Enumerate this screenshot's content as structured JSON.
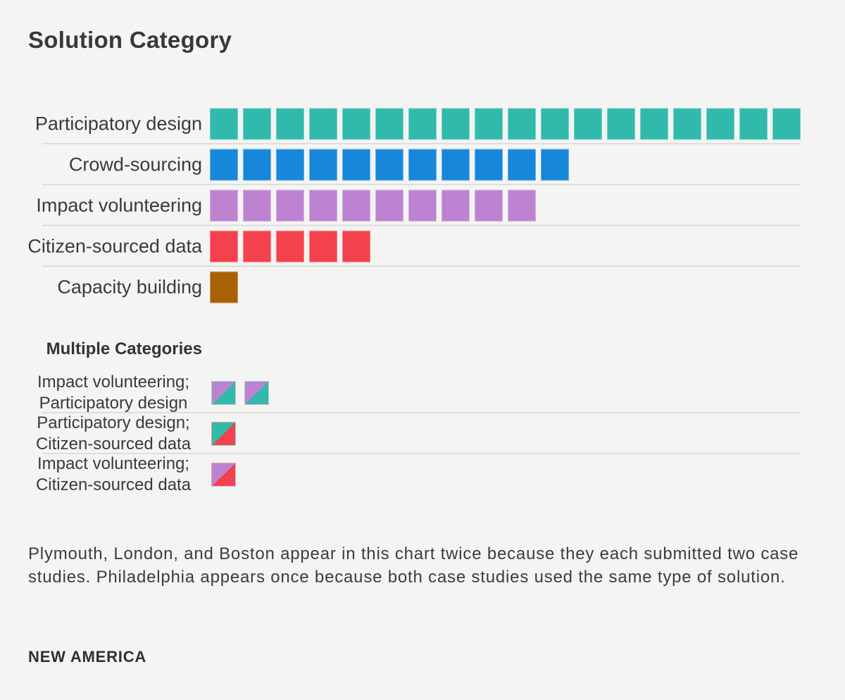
{
  "title": "Solution Category",
  "colors": {
    "teal": "#31b9ab",
    "blue": "#1787db",
    "purple": "#bd83d1",
    "red": "#f4414e",
    "brown": "#a96105",
    "background": "#f4f4f2",
    "separator": "#dedede",
    "text": "#3a3a3a"
  },
  "chart_data": {
    "type": "unit_bar",
    "title": "Solution Category",
    "legend_position": "none",
    "grid": "row-separators-only",
    "categories": [
      "Participatory design",
      "Crowd-sourcing",
      "Impact volunteering",
      "Citizen-sourced data",
      "Capacity building"
    ],
    "values": [
      18,
      11,
      10,
      5,
      1
    ],
    "single_categories": [
      {
        "label": "Participatory design",
        "count": 18,
        "color": "#31b9ab",
        "color_name": "teal"
      },
      {
        "label": "Crowd-sourcing",
        "count": 11,
        "color": "#1787db",
        "color_name": "blue"
      },
      {
        "label": "Impact volunteering",
        "count": 10,
        "color": "#bd83d1",
        "color_name": "purple"
      },
      {
        "label": "Citizen-sourced data",
        "count": 5,
        "color": "#f4414e",
        "color_name": "red"
      },
      {
        "label": "Capacity building",
        "count": 1,
        "color": "#a96105",
        "color_name": "brown"
      }
    ],
    "multiple_heading": "Multiple Categories",
    "multiple_categories": [
      {
        "label_lines": [
          "Impact volunteering;",
          "Participatory design"
        ],
        "count": 2,
        "colors": [
          "#bd83d1",
          "#31b9ab"
        ],
        "color_names": [
          "purple",
          "teal"
        ]
      },
      {
        "label_lines": [
          "Participatory design;",
          "Citizen-sourced data"
        ],
        "count": 1,
        "colors": [
          "#31b9ab",
          "#f4414e"
        ],
        "color_names": [
          "teal",
          "red"
        ]
      },
      {
        "label_lines": [
          "Impact volunteering;",
          "Citizen-sourced data"
        ],
        "count": 1,
        "colors": [
          "#bd83d1",
          "#f4414e"
        ],
        "color_names": [
          "purple",
          "red"
        ]
      }
    ],
    "footnote": "Plymouth, London, and Boston appear in this chart twice because they each submitted two case studies. Philadelphia appears once because both case studies used the same type of solution.",
    "logo": "NEW AMERICA"
  }
}
